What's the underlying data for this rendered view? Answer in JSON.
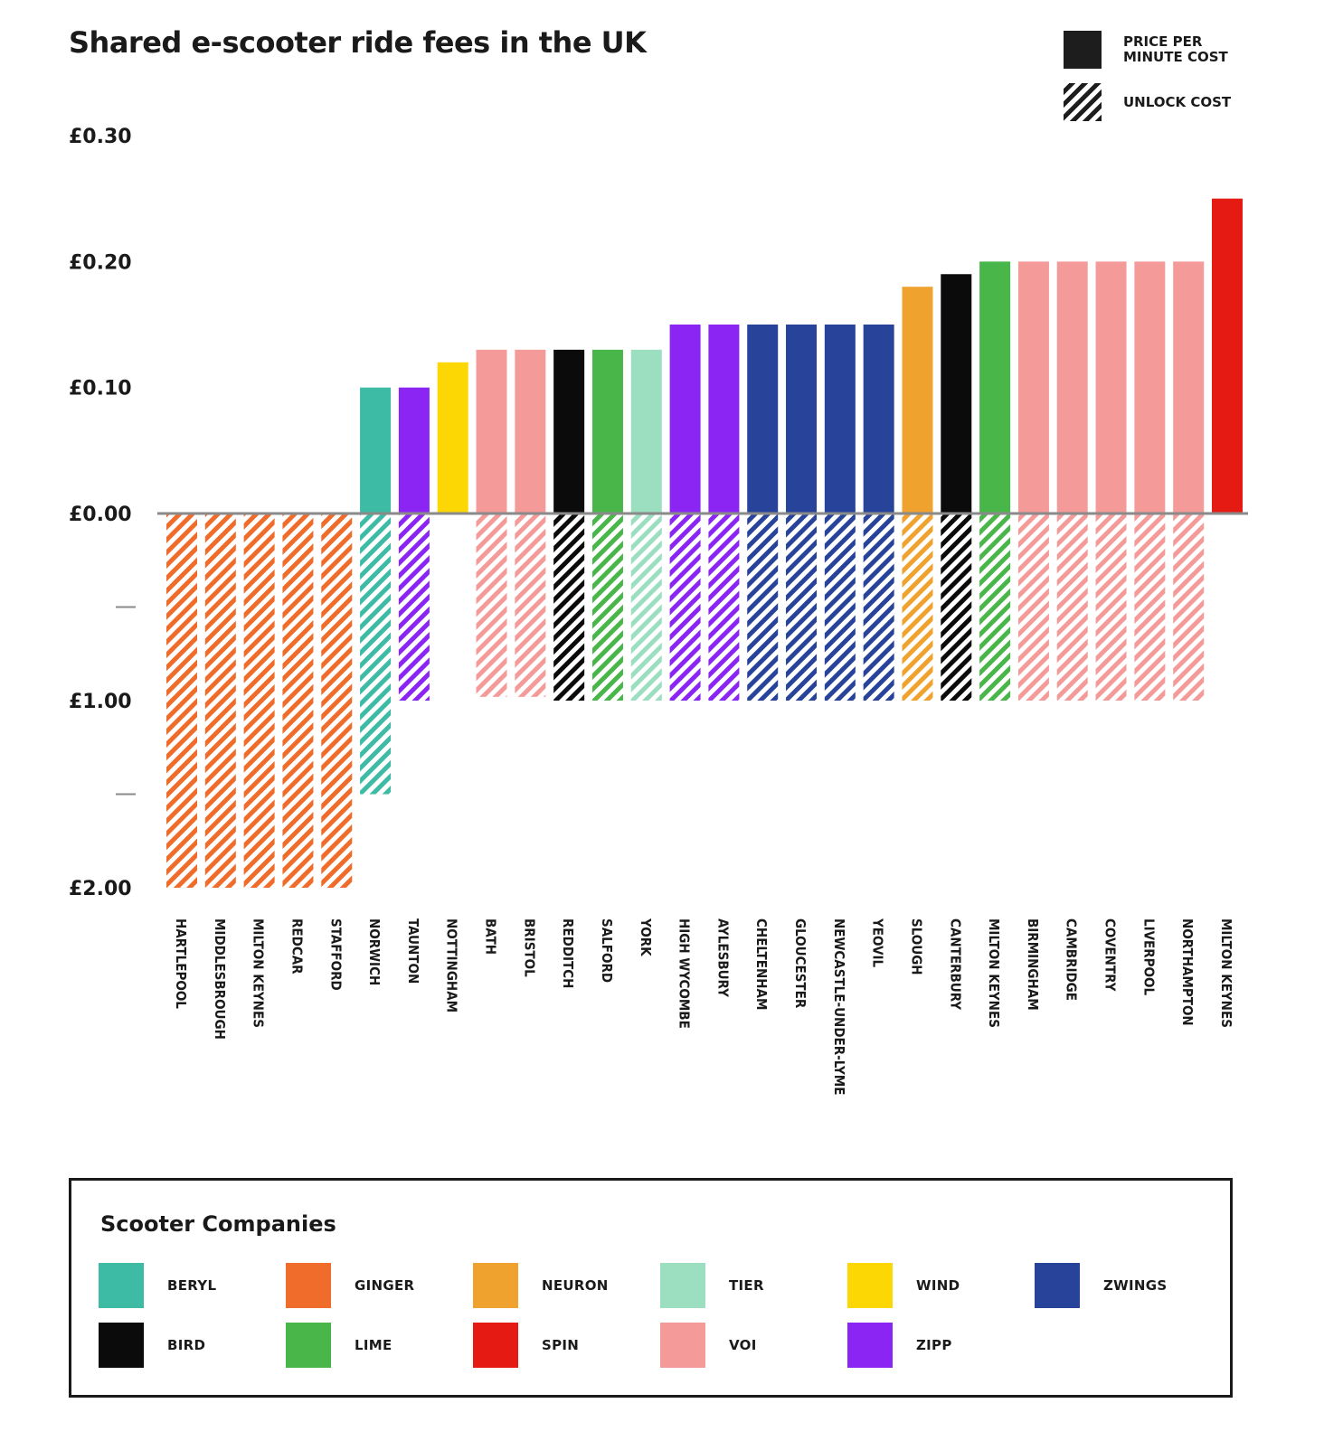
{
  "title": "Shared e-scooter ride fees in the UK",
  "legend_types": [
    {
      "key": "price",
      "label": "PRICE PER\nMINUTE COST",
      "style": "solid"
    },
    {
      "key": "unlock",
      "label": "UNLOCK COST",
      "style": "hatched"
    }
  ],
  "companies": {
    "title": "Scooter Companies",
    "items": [
      {
        "name": "BERYL",
        "color": "#3dbba5"
      },
      {
        "name": "GINGER",
        "color": "#f06c2a"
      },
      {
        "name": "NEURON",
        "color": "#efa22d"
      },
      {
        "name": "TIER",
        "color": "#9bdfc0"
      },
      {
        "name": "WIND",
        "color": "#fcd703"
      },
      {
        "name": "ZWINGS",
        "color": "#27439a"
      },
      {
        "name": "BIRD",
        "color": "#0b0b0b"
      },
      {
        "name": "LIME",
        "color": "#49b649"
      },
      {
        "name": "SPIN",
        "color": "#e51b13"
      },
      {
        "name": "VOI",
        "color": "#f49b9a"
      },
      {
        "name": "ZIPP",
        "color": "#8b25f3"
      }
    ]
  },
  "chart_data": {
    "type": "bar",
    "title": "Shared e-scooter ride fees in the UK",
    "upper_axis": {
      "ticks": [
        "£0.30",
        "£0.20",
        "£0.10",
        "£0.00"
      ],
      "values": [
        0.3,
        0.2,
        0.1,
        0.0
      ],
      "ylim": [
        0,
        0.3
      ]
    },
    "lower_axis": {
      "ticks": [
        "",
        "£1.00",
        "",
        "£2.00"
      ],
      "values": [
        0.5,
        1.0,
        1.5,
        2.0
      ],
      "ylim": [
        0,
        2.0
      ]
    },
    "categories": [
      "HARTLEPOOL",
      "MIDDLESBROUGH",
      "MILTON KEYNES",
      "REDCAR",
      "STAFFORD",
      "NORWICH",
      "TAUNTON",
      "NOTTINGHAM",
      "BATH",
      "BRISTOL",
      "REDDITCH",
      "SALFORD",
      "YORK",
      "HIGH WYCOMBE",
      "AYLESBURY",
      "CHELTENHAM",
      "GLOUCESTER",
      "NEWCASTLE-UNDER-LYME",
      "YEOVIL",
      "SLOUGH",
      "CANTERBURY",
      "MILTON KEYNES",
      "BIRMINGHAM",
      "CAMBRIDGE",
      "COVENTRY",
      "LIVERPOOL",
      "NORTHAMPTON",
      "MILTON KEYNES"
    ],
    "company": [
      "GINGER",
      "GINGER",
      "GINGER",
      "GINGER",
      "GINGER",
      "BERYL",
      "ZIPP",
      "WIND",
      "VOI",
      "VOI",
      "BIRD",
      "LIME",
      "TIER",
      "ZIPP",
      "ZIPP",
      "ZWINGS",
      "ZWINGS",
      "ZWINGS",
      "ZWINGS",
      "NEURON",
      "BIRD",
      "LIME",
      "VOI",
      "VOI",
      "VOI",
      "VOI",
      "VOI",
      "SPIN"
    ],
    "series": [
      {
        "name": "PRICE PER MINUTE COST",
        "values": [
          0,
          0,
          0,
          0,
          0,
          0.1,
          0.1,
          0.12,
          0.13,
          0.13,
          0.13,
          0.13,
          0.13,
          0.15,
          0.15,
          0.15,
          0.15,
          0.15,
          0.15,
          0.18,
          0.19,
          0.2,
          0.2,
          0.2,
          0.2,
          0.2,
          0.2,
          0.25
        ]
      },
      {
        "name": "UNLOCK COST",
        "values": [
          2.0,
          2.0,
          2.0,
          2.0,
          2.0,
          1.5,
          1.0,
          0,
          0.98,
          0.98,
          1.0,
          1.0,
          1.0,
          1.0,
          1.0,
          1.0,
          1.0,
          1.0,
          1.0,
          1.0,
          1.0,
          1.0,
          1.0,
          1.0,
          1.0,
          1.0,
          1.0,
          0
        ]
      }
    ]
  }
}
